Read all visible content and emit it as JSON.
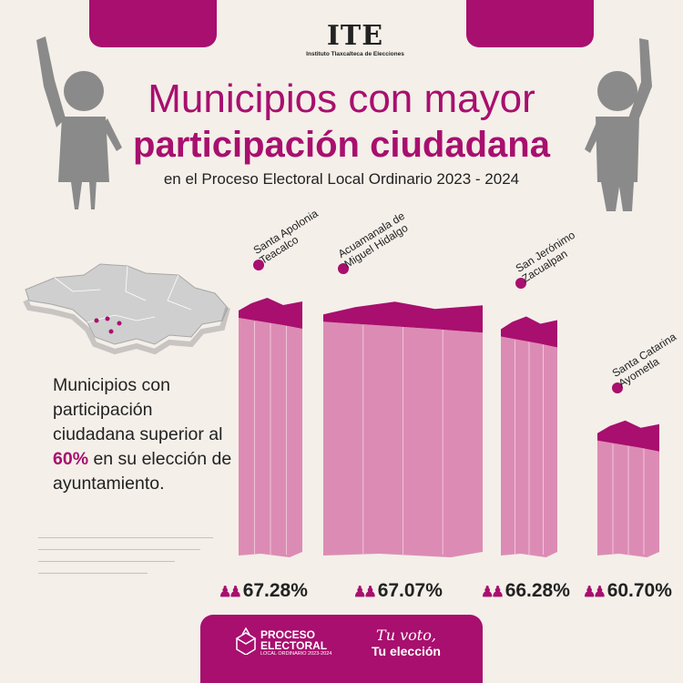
{
  "header": {
    "logo_text": "ITE",
    "logo_subtitle": "Instituto Tlaxcalteca de Elecciones",
    "title_line1": "Municipios con mayor",
    "title_line2": "participación ciudadana",
    "subtitle": "en el Proceso Electoral Local Ordinario 2023 - 2024"
  },
  "description": {
    "text_before": "Municipios con participación ciudadana superior al",
    "highlight": "60%",
    "text_after": "en su elección de ayuntamiento."
  },
  "colors": {
    "accent": "#a80f6e",
    "bar_fill": "#dc8cb4",
    "background": "#f4efe9"
  },
  "icons": {
    "percent_icon": "people-icon",
    "map": "tlaxcala-map-icon",
    "figures": "raised-hand-person-icon"
  },
  "chart_data": {
    "type": "bar",
    "categories": [
      "Santa Apolonia Teacalco",
      "Acuamanala de Miguel Hidalgo",
      "San Jerónimo Zacualpan",
      "Santa Catarina Ayometla"
    ],
    "label_lines": [
      [
        "Santa Apolonia",
        "Teacalco"
      ],
      [
        "Acuamanala de",
        "Miguel Hidalgo"
      ],
      [
        "San Jerónimo",
        "Zacualpan"
      ],
      [
        "Santa Catarina",
        "Ayometla"
      ]
    ],
    "values": [
      67.28,
      67.07,
      66.28,
      60.7
    ],
    "value_labels": [
      "67.28%",
      "67.07%",
      "66.28%",
      "60.70%"
    ],
    "title": "Municipios con mayor participación ciudadana",
    "subtitle": "en el Proceso Electoral Local Ordinario 2023 - 2024",
    "xlabel": "",
    "ylabel": "",
    "threshold": 60
  },
  "footer": {
    "proceso_line1": "PROCESO",
    "proceso_line2": "ELECTORAL",
    "proceso_line3": "LOCAL ORDINARIO 2023-2024",
    "slogan_line1": "Tu voto,",
    "slogan_line2": "Tu elección"
  }
}
